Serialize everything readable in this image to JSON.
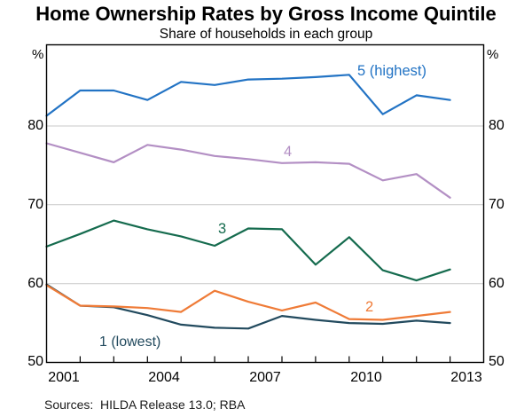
{
  "title": "Home Ownership Rates by Gross Income Quintile",
  "subtitle": "Share of households in each group",
  "axes": {
    "unit_left": "%",
    "unit_right": "%",
    "y_tick_labels": [
      "80",
      "70",
      "60",
      "50"
    ],
    "x_tick_labels": [
      "2001",
      "2004",
      "2007",
      "2010",
      "2013"
    ]
  },
  "footer": {
    "sources": "Sources:  HILDA Release 13.0; RBA"
  },
  "colors": {
    "grid": "#c9c9c9",
    "axis": "#000000"
  },
  "chart_data": {
    "type": "line",
    "x": [
      2001,
      2002,
      2003,
      2004,
      2005,
      2006,
      2007,
      2008,
      2009,
      2010,
      2011,
      2012,
      2013
    ],
    "xlim": [
      2001,
      2014
    ],
    "ylim": [
      50,
      90.3
    ],
    "y_gridlines": [
      60,
      70,
      80
    ],
    "grid": "horizontal",
    "legend_position": "inline-labels",
    "xlabel": "",
    "ylabel": "%",
    "series": [
      {
        "name": "quintile-5",
        "label": "5 (highest)",
        "color": "#2273c4",
        "values": [
          81.3,
          84.5,
          84.5,
          83.3,
          85.6,
          85.2,
          85.9,
          86.0,
          86.2,
          86.5,
          81.5,
          83.9,
          83.3
        ]
      },
      {
        "name": "quintile-4",
        "label": "4",
        "color": "#b38fc4",
        "values": [
          77.8,
          76.6,
          75.4,
          77.6,
          77.0,
          76.2,
          75.8,
          75.3,
          75.4,
          75.2,
          73.1,
          73.9,
          70.9
        ]
      },
      {
        "name": "quintile-3",
        "label": "3",
        "color": "#156b4e",
        "values": [
          64.7,
          66.3,
          68.0,
          66.9,
          66.0,
          64.8,
          67.0,
          66.9,
          62.4,
          65.9,
          61.7,
          60.4,
          61.8
        ]
      },
      {
        "name": "quintile-2",
        "label": "2",
        "color": "#ef7b37",
        "values": [
          59.8,
          57.2,
          57.1,
          56.9,
          56.4,
          59.1,
          57.7,
          56.6,
          57.6,
          55.5,
          55.4,
          55.9,
          56.4
        ]
      },
      {
        "name": "quintile-1",
        "label": "1 (lowest)",
        "color": "#224a5e",
        "values": [
          59.9,
          57.2,
          57.0,
          56.0,
          54.8,
          54.4,
          54.3,
          55.9,
          55.4,
          55.0,
          54.9,
          55.3,
          55.0
        ]
      }
    ]
  }
}
